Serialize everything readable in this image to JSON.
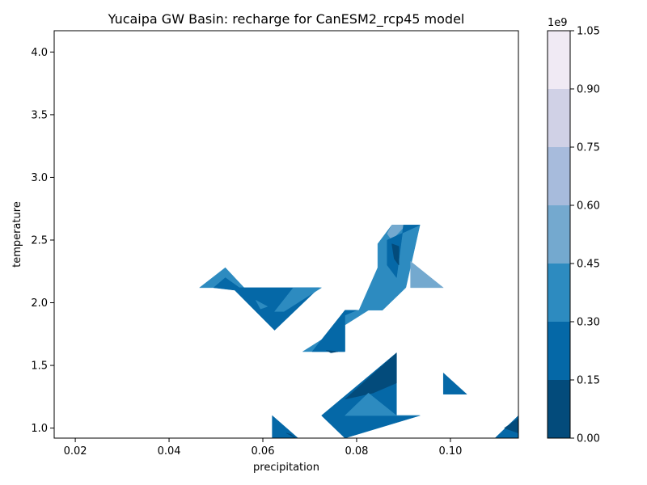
{
  "chart_data": {
    "type": "contourf",
    "title": "Yucaipa GW Basin: recharge for CanESM2_rcp45 model",
    "xlabel": "precipitation",
    "ylabel": "temperature",
    "xlim": [
      0.0155,
      0.1145
    ],
    "ylim": [
      0.92,
      4.17
    ],
    "xticks": [
      0.02,
      0.04,
      0.06,
      0.08,
      0.1
    ],
    "xtick_labels": [
      "0.02",
      "0.04",
      "0.06",
      "0.08",
      "0.10"
    ],
    "yticks": [
      1.0,
      1.5,
      2.0,
      2.5,
      3.0,
      3.5,
      4.0
    ],
    "ytick_labels": [
      "1.0",
      "1.5",
      "2.0",
      "2.5",
      "3.0",
      "3.5",
      "4.0"
    ],
    "grid": false,
    "colorbar": {
      "exponent_label": "1e9",
      "levels": [
        0.0,
        0.15,
        0.3,
        0.45,
        0.6,
        0.75,
        0.9,
        1.05
      ],
      "tick_labels": [
        "0.00",
        "0.15",
        "0.30",
        "0.45",
        "0.60",
        "0.75",
        "0.90",
        "1.05"
      ],
      "colors": [
        "#034b7b",
        "#0568a7",
        "#2d8bc0",
        "#74a9cf",
        "#a7bbdc",
        "#d0d1e6",
        "#f0eaf4"
      ]
    },
    "filled_regions": [
      {
        "level_band": "0.30-0.45",
        "color": "#2d8bc0",
        "points": [
          [
            0.0465,
            2.12
          ],
          [
            0.052,
            2.28
          ],
          [
            0.056,
            2.12
          ]
        ]
      },
      {
        "level_band": "0.15-0.30",
        "color": "#0568a7",
        "points": [
          [
            0.0495,
            2.12
          ],
          [
            0.052,
            2.2
          ],
          [
            0.055,
            2.12
          ],
          [
            0.072,
            2.12
          ],
          [
            0.0625,
            1.78
          ],
          [
            0.054,
            2.1
          ]
        ]
      },
      {
        "level_band": "0.30-0.45",
        "color": "#2d8bc0",
        "points": [
          [
            0.0665,
            2.12
          ],
          [
            0.0725,
            2.12
          ],
          [
            0.0645,
            1.93
          ],
          [
            0.0625,
            1.93
          ]
        ]
      },
      {
        "level_band": "0.30-0.45",
        "color": "#2d8bc0",
        "points": [
          [
            0.0585,
            2.02
          ],
          [
            0.061,
            1.97
          ],
          [
            0.0595,
            1.95
          ]
        ]
      },
      {
        "level_band": "0.30-0.45",
        "color": "#2d8bc0",
        "points": [
          [
            0.0685,
            1.61
          ],
          [
            0.0775,
            1.61
          ],
          [
            0.0775,
            1.94
          ],
          [
            0.0825,
            1.94
          ]
        ]
      },
      {
        "level_band": "0.15-0.30",
        "color": "#0568a7",
        "points": [
          [
            0.0705,
            1.61
          ],
          [
            0.0775,
            1.61
          ],
          [
            0.0775,
            1.9
          ],
          [
            0.08,
            1.94
          ],
          [
            0.0775,
            1.94
          ]
        ]
      },
      {
        "level_band": "0.00-0.15",
        "color": "#034b7b",
        "points": [
          [
            0.0735,
            1.62
          ],
          [
            0.076,
            1.61
          ],
          [
            0.0745,
            1.6
          ]
        ]
      },
      {
        "level_band": "0.30-0.45",
        "color": "#2d8bc0",
        "points": [
          [
            0.0845,
            2.47
          ],
          [
            0.0875,
            2.62
          ],
          [
            0.0935,
            2.62
          ],
          [
            0.0905,
            2.12
          ],
          [
            0.0855,
            1.94
          ],
          [
            0.0805,
            1.94
          ],
          [
            0.0845,
            2.28
          ]
        ]
      },
      {
        "level_band": "0.45-0.60",
        "color": "#74a9cf",
        "points": [
          [
            0.0865,
            2.55
          ],
          [
            0.0875,
            2.62
          ],
          [
            0.0905,
            2.62
          ],
          [
            0.0875,
            2.5
          ]
        ]
      },
      {
        "level_band": "0.45-0.60",
        "color": "#74a9cf",
        "points": [
          [
            0.0915,
            2.33
          ],
          [
            0.0985,
            2.12
          ],
          [
            0.0915,
            2.12
          ]
        ]
      },
      {
        "level_band": "0.15-0.30",
        "color": "#0568a7",
        "points": [
          [
            0.0865,
            2.5
          ],
          [
            0.0935,
            2.62
          ],
          [
            0.09,
            2.62
          ],
          [
            0.0885,
            2.2
          ],
          [
            0.0865,
            2.3
          ]
        ]
      },
      {
        "level_band": "0.00-0.15",
        "color": "#034b7b",
        "points": [
          [
            0.0875,
            2.47
          ],
          [
            0.089,
            2.45
          ],
          [
            0.089,
            2.3
          ],
          [
            0.088,
            2.35
          ]
        ]
      },
      {
        "level_band": "0.15-0.30",
        "color": "#0568a7",
        "points": [
          [
            0.0725,
            1.1
          ],
          [
            0.0885,
            1.6
          ],
          [
            0.0885,
            1.1
          ],
          [
            0.0935,
            1.1
          ],
          [
            0.0775,
            0.92
          ]
        ]
      },
      {
        "level_band": "0.00-0.15",
        "color": "#034b7b",
        "points": [
          [
            0.0775,
            1.23
          ],
          [
            0.0885,
            1.6
          ],
          [
            0.0885,
            1.36
          ],
          [
            0.0835,
            1.28
          ]
        ]
      },
      {
        "level_band": "0.30-0.45",
        "color": "#2d8bc0",
        "points": [
          [
            0.0775,
            1.1
          ],
          [
            0.0825,
            1.28
          ],
          [
            0.0885,
            1.1
          ],
          [
            0.0935,
            1.1
          ]
        ]
      },
      {
        "level_band": "0.15-0.30",
        "color": "#0568a7",
        "points": [
          [
            0.062,
            0.92
          ],
          [
            0.062,
            1.1
          ],
          [
            0.0675,
            0.92
          ]
        ]
      },
      {
        "level_band": "0.00-0.15",
        "color": "#034b7b",
        "points": [
          [
            0.065,
            0.96
          ],
          [
            0.067,
            0.92
          ],
          [
            0.066,
            0.95
          ]
        ]
      },
      {
        "level_band": "0.15-0.30",
        "color": "#0568a7",
        "points": [
          [
            0.0985,
            1.27
          ],
          [
            0.0985,
            1.44
          ],
          [
            0.1035,
            1.27
          ]
        ]
      },
      {
        "level_band": "0.15-0.30",
        "color": "#0568a7",
        "points": [
          [
            0.1095,
            0.92
          ],
          [
            0.1145,
            1.1
          ],
          [
            0.1145,
            0.92
          ]
        ]
      },
      {
        "level_band": "0.00-0.15",
        "color": "#034b7b",
        "points": [
          [
            0.1115,
            1.0
          ],
          [
            0.1145,
            1.08
          ],
          [
            0.1145,
            0.96
          ]
        ]
      }
    ]
  }
}
